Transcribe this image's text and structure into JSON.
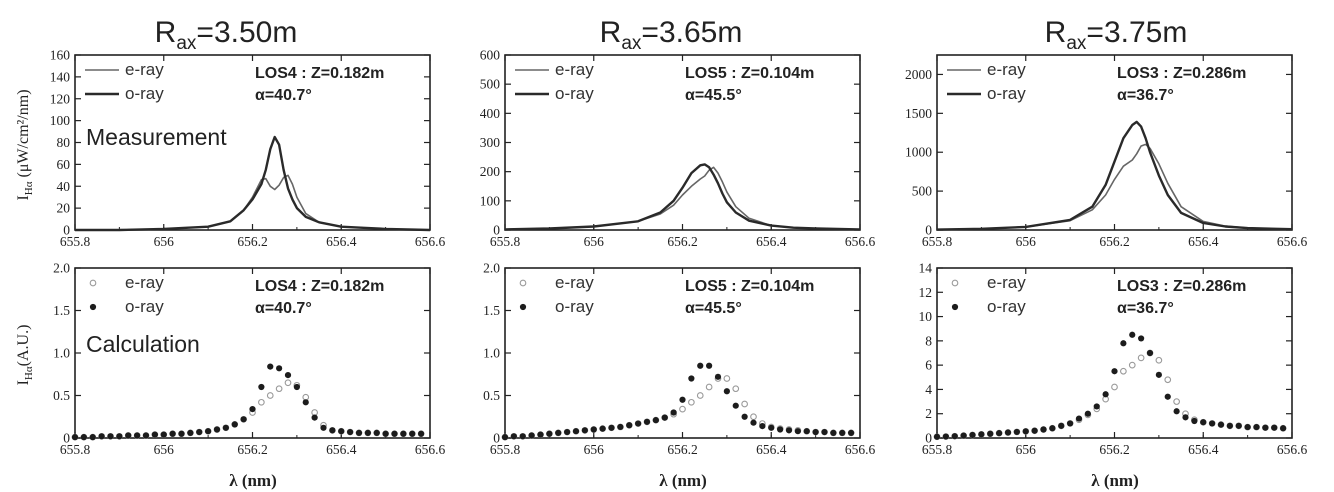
{
  "columns": [
    {
      "title": "R",
      "title_sub": "ax",
      "title_value": "=3.50m"
    },
    {
      "title": "R",
      "title_sub": "ax",
      "title_value": "=3.65m"
    },
    {
      "title": "R",
      "title_sub": "ax",
      "title_value": "=3.75m"
    }
  ],
  "row_labels": {
    "measurement": "Measurement",
    "calculation": "Calculation"
  },
  "ylabels": {
    "measurement_main": "I",
    "measurement_sub": "Hα",
    "measurement_unit": " (μW/cm²/nm)",
    "calculation_main": "I",
    "calculation_sub": "Hα",
    "calculation_unit": "(A.U.)"
  },
  "xlabel": "λ (nm)",
  "legend": {
    "e": "e-ray",
    "o": "o-ray"
  },
  "colors": {
    "axis": "#222222",
    "e_line": "#666666",
    "o_line": "#2a2a2a",
    "e_marker": "#9a9a9a",
    "o_marker": "#1c1c1c"
  },
  "chart_data": [
    {
      "type": "line",
      "panel": "measurement",
      "column": 0,
      "annotation": [
        "LOS4 : Z=0.182m",
        "α=40.7°"
      ],
      "xlim": [
        655.8,
        656.6
      ],
      "ylim": [
        0,
        160
      ],
      "xticks": [
        "655.8",
        "656",
        "656.2",
        "656.4",
        "656.6"
      ],
      "yticks": [
        "0",
        "20",
        "40",
        "60",
        "80",
        "100",
        "120",
        "140",
        "160"
      ],
      "x": [
        655.8,
        655.9,
        656.0,
        656.1,
        656.15,
        656.18,
        656.2,
        656.22,
        656.23,
        656.24,
        656.25,
        656.26,
        656.27,
        656.28,
        656.29,
        656.3,
        656.32,
        656.35,
        656.4,
        656.45,
        656.5,
        656.6
      ],
      "series": [
        {
          "name": "e-ray",
          "values": [
            0,
            0,
            1,
            3,
            8,
            18,
            30,
            46,
            47,
            40,
            37,
            41,
            48,
            50,
            42,
            30,
            15,
            7,
            3,
            2,
            1,
            0
          ]
        },
        {
          "name": "o-ray",
          "values": [
            0,
            0,
            1,
            3,
            8,
            18,
            28,
            42,
            55,
            74,
            85,
            78,
            55,
            38,
            28,
            20,
            12,
            7,
            3,
            2,
            1,
            0
          ]
        }
      ]
    },
    {
      "type": "line",
      "panel": "measurement",
      "column": 1,
      "annotation": [
        "LOS5 : Z=0.104m",
        "α=45.5°"
      ],
      "xlim": [
        655.8,
        656.6
      ],
      "ylim": [
        0,
        600
      ],
      "xticks": [
        "655.8",
        "656",
        "656.2",
        "656.4",
        "656.6"
      ],
      "yticks": [
        "0",
        "100",
        "200",
        "300",
        "400",
        "500",
        "600"
      ],
      "x": [
        655.8,
        655.9,
        656.0,
        656.1,
        656.15,
        656.18,
        656.2,
        656.22,
        656.24,
        656.25,
        656.26,
        656.27,
        656.28,
        656.29,
        656.3,
        656.32,
        656.35,
        656.4,
        656.45,
        656.5,
        656.6
      ],
      "series": [
        {
          "name": "e-ray",
          "values": [
            2,
            5,
            12,
            30,
            55,
            85,
            120,
            150,
            175,
            185,
            205,
            215,
            195,
            165,
            130,
            80,
            40,
            15,
            8,
            5,
            2
          ]
        },
        {
          "name": "o-ray",
          "values": [
            2,
            5,
            12,
            30,
            60,
            100,
            145,
            195,
            222,
            225,
            215,
            190,
            160,
            125,
            95,
            60,
            32,
            15,
            8,
            5,
            2
          ]
        }
      ]
    },
    {
      "type": "line",
      "panel": "measurement",
      "column": 2,
      "annotation": [
        "LOS3 : Z=0.286m",
        "α=36.7°"
      ],
      "xlim": [
        655.8,
        656.6
      ],
      "ylim": [
        0,
        2250
      ],
      "xticks": [
        "655.8",
        "656",
        "656.2",
        "656.4",
        "656.6"
      ],
      "yticks": [
        "0",
        "500",
        "1000",
        "1500",
        "2000"
      ],
      "x": [
        655.8,
        655.9,
        656.0,
        656.1,
        656.15,
        656.18,
        656.2,
        656.22,
        656.24,
        656.25,
        656.26,
        656.27,
        656.28,
        656.3,
        656.32,
        656.35,
        656.4,
        656.45,
        656.5,
        656.6
      ],
      "series": [
        {
          "name": "e-ray",
          "values": [
            5,
            15,
            40,
            120,
            260,
            450,
            650,
            820,
            900,
            980,
            1080,
            1100,
            1050,
            850,
            600,
            300,
            110,
            50,
            25,
            10
          ]
        },
        {
          "name": "o-ray",
          "values": [
            5,
            15,
            40,
            130,
            300,
            580,
            880,
            1180,
            1350,
            1390,
            1330,
            1180,
            1000,
            700,
            450,
            220,
            90,
            45,
            25,
            10
          ]
        }
      ]
    },
    {
      "type": "scatter",
      "panel": "calculation",
      "column": 0,
      "annotation": [
        "LOS4 : Z=0.182m",
        "α=40.7°"
      ],
      "xlim": [
        655.8,
        656.6
      ],
      "ylim": [
        0,
        2.0
      ],
      "xticks": [
        "655.8",
        "656",
        "656.2",
        "656.4",
        "656.6"
      ],
      "yticks": [
        "0",
        "0.5",
        "1.0",
        "1.5",
        "2.0"
      ],
      "x": [
        655.8,
        655.82,
        655.84,
        655.86,
        655.88,
        655.9,
        655.92,
        655.94,
        655.96,
        655.98,
        656.0,
        656.02,
        656.04,
        656.06,
        656.08,
        656.1,
        656.12,
        656.14,
        656.16,
        656.18,
        656.2,
        656.22,
        656.24,
        656.26,
        656.28,
        656.3,
        656.32,
        656.34,
        656.36,
        656.38,
        656.4,
        656.42,
        656.44,
        656.46,
        656.48,
        656.5,
        656.52,
        656.54,
        656.56,
        656.58
      ],
      "series": [
        {
          "name": "e-ray",
          "values": [
            0.01,
            0.01,
            0.01,
            0.02,
            0.02,
            0.02,
            0.03,
            0.03,
            0.03,
            0.04,
            0.04,
            0.05,
            0.05,
            0.06,
            0.07,
            0.08,
            0.1,
            0.12,
            0.16,
            0.22,
            0.3,
            0.42,
            0.5,
            0.58,
            0.65,
            0.62,
            0.48,
            0.3,
            0.15,
            0.09,
            0.08,
            0.07,
            0.06,
            0.06,
            0.06,
            0.05,
            0.05,
            0.05,
            0.05,
            0.05
          ]
        },
        {
          "name": "o-ray",
          "values": [
            0.01,
            0.01,
            0.01,
            0.02,
            0.02,
            0.02,
            0.03,
            0.03,
            0.03,
            0.04,
            0.04,
            0.05,
            0.05,
            0.06,
            0.07,
            0.08,
            0.1,
            0.12,
            0.16,
            0.22,
            0.34,
            0.6,
            0.84,
            0.82,
            0.74,
            0.6,
            0.42,
            0.24,
            0.12,
            0.09,
            0.08,
            0.07,
            0.06,
            0.06,
            0.06,
            0.05,
            0.05,
            0.05,
            0.05,
            0.05
          ]
        }
      ]
    },
    {
      "type": "scatter",
      "panel": "calculation",
      "column": 1,
      "annotation": [
        "LOS5 : Z=0.104m",
        "α=45.5°"
      ],
      "xlim": [
        655.8,
        656.6
      ],
      "ylim": [
        0,
        2.0
      ],
      "xticks": [
        "655.8",
        "656",
        "656.2",
        "656.4",
        "656.6"
      ],
      "yticks": [
        "0",
        "0.5",
        "1.0",
        "1.5",
        "2.0"
      ],
      "x": [
        655.8,
        655.82,
        655.84,
        655.86,
        655.88,
        655.9,
        655.92,
        655.94,
        655.96,
        655.98,
        656.0,
        656.02,
        656.04,
        656.06,
        656.08,
        656.1,
        656.12,
        656.14,
        656.16,
        656.18,
        656.2,
        656.22,
        656.24,
        656.26,
        656.28,
        656.3,
        656.32,
        656.34,
        656.36,
        656.38,
        656.4,
        656.42,
        656.44,
        656.46,
        656.48,
        656.5,
        656.52,
        656.54,
        656.56,
        656.58
      ],
      "series": [
        {
          "name": "e-ray",
          "values": [
            0.01,
            0.02,
            0.02,
            0.03,
            0.04,
            0.05,
            0.06,
            0.07,
            0.08,
            0.09,
            0.1,
            0.11,
            0.12,
            0.13,
            0.15,
            0.17,
            0.19,
            0.21,
            0.24,
            0.28,
            0.34,
            0.42,
            0.5,
            0.6,
            0.7,
            0.7,
            0.58,
            0.4,
            0.25,
            0.17,
            0.13,
            0.11,
            0.1,
            0.09,
            0.08,
            0.07,
            0.07,
            0.06,
            0.06,
            0.06
          ]
        },
        {
          "name": "o-ray",
          "values": [
            0.01,
            0.02,
            0.02,
            0.03,
            0.04,
            0.05,
            0.06,
            0.07,
            0.08,
            0.09,
            0.1,
            0.11,
            0.12,
            0.13,
            0.15,
            0.17,
            0.19,
            0.21,
            0.24,
            0.3,
            0.45,
            0.7,
            0.85,
            0.85,
            0.72,
            0.55,
            0.38,
            0.25,
            0.18,
            0.14,
            0.12,
            0.1,
            0.09,
            0.08,
            0.08,
            0.07,
            0.07,
            0.06,
            0.06,
            0.06
          ]
        }
      ]
    },
    {
      "type": "scatter",
      "panel": "calculation",
      "column": 2,
      "annotation": [
        "LOS3 : Z=0.286m",
        "α=36.7°"
      ],
      "xlim": [
        655.8,
        656.6
      ],
      "ylim": [
        0,
        14
      ],
      "xticks": [
        "655.8",
        "656",
        "656.2",
        "656.4",
        "656.6"
      ],
      "yticks": [
        "0",
        "2",
        "4",
        "6",
        "8",
        "10",
        "12",
        "14"
      ],
      "x": [
        655.8,
        655.82,
        655.84,
        655.86,
        655.88,
        655.9,
        655.92,
        655.94,
        655.96,
        655.98,
        656.0,
        656.02,
        656.04,
        656.06,
        656.08,
        656.1,
        656.12,
        656.14,
        656.16,
        656.18,
        656.2,
        656.22,
        656.24,
        656.26,
        656.28,
        656.3,
        656.32,
        656.34,
        656.36,
        656.38,
        656.4,
        656.42,
        656.44,
        656.46,
        656.48,
        656.5,
        656.52,
        656.54,
        656.56,
        656.58
      ],
      "series": [
        {
          "name": "e-ray",
          "values": [
            0.1,
            0.12,
            0.15,
            0.2,
            0.25,
            0.3,
            0.35,
            0.4,
            0.45,
            0.5,
            0.55,
            0.6,
            0.7,
            0.8,
            1.0,
            1.2,
            1.5,
            1.9,
            2.4,
            3.2,
            4.2,
            5.5,
            6.0,
            6.6,
            7.0,
            6.4,
            4.8,
            3.0,
            2.0,
            1.5,
            1.3,
            1.2,
            1.1,
            1.0,
            1.0,
            0.9,
            0.9,
            0.85,
            0.85,
            0.8
          ]
        },
        {
          "name": "o-ray",
          "values": [
            0.1,
            0.12,
            0.15,
            0.2,
            0.25,
            0.3,
            0.35,
            0.4,
            0.45,
            0.5,
            0.55,
            0.6,
            0.7,
            0.8,
            1.0,
            1.2,
            1.6,
            2.0,
            2.6,
            3.6,
            5.5,
            7.8,
            8.5,
            8.2,
            7.0,
            5.2,
            3.4,
            2.2,
            1.7,
            1.4,
            1.3,
            1.2,
            1.1,
            1.0,
            1.0,
            0.9,
            0.9,
            0.85,
            0.85,
            0.8
          ]
        }
      ]
    }
  ]
}
